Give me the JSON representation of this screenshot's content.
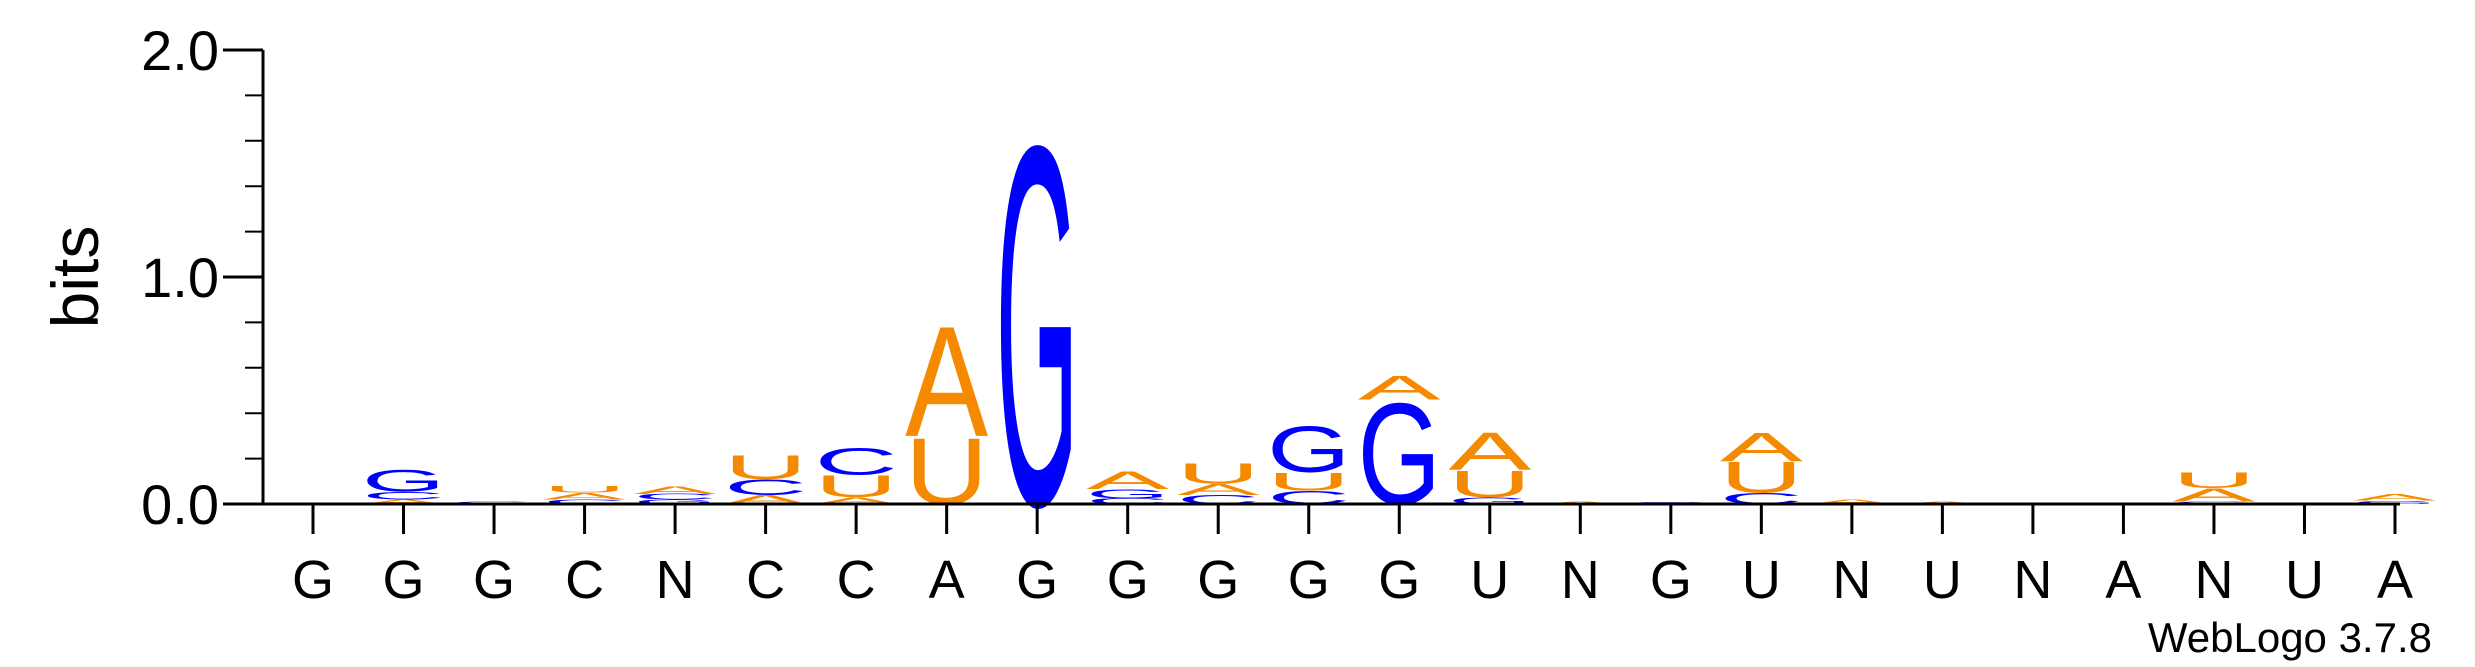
{
  "chart_data": {
    "type": "sequence-logo",
    "ylabel": "bits",
    "ylim": [
      0,
      2.0
    ],
    "yticks": [
      "0.0",
      "1.0",
      "2.0"
    ],
    "xlabels": [
      "G",
      "G",
      "G",
      "C",
      "N",
      "C",
      "C",
      "A",
      "G",
      "G",
      "G",
      "G",
      "G",
      "U",
      "N",
      "G",
      "U",
      "N",
      "U",
      "N",
      "A",
      "N",
      "U",
      "A"
    ],
    "colors": {
      "A": "#f58a00",
      "U": "#f58a00",
      "G": "#0000ff",
      "C": "#0000ff"
    },
    "columns": [
      [],
      [
        [
          "A",
          0.02
        ],
        [
          "C",
          0.035
        ],
        [
          "G",
          0.1
        ]
      ],
      [
        [
          "G",
          0.01
        ]
      ],
      [
        [
          "C",
          0.02
        ],
        [
          "A",
          0.03
        ],
        [
          "U",
          0.03
        ]
      ],
      [
        [
          "G",
          0.02
        ],
        [
          "C",
          0.025
        ],
        [
          "A",
          0.035
        ]
      ],
      [
        [
          "A",
          0.04
        ],
        [
          "C",
          0.07
        ],
        [
          "U",
          0.11
        ]
      ],
      [
        [
          "A",
          0.03
        ],
        [
          "U",
          0.1
        ],
        [
          "C",
          0.12
        ]
      ],
      [
        [
          "U",
          0.3
        ],
        [
          "A",
          0.5
        ]
      ],
      [
        [
          "G",
          1.63
        ]
      ],
      [
        [
          "C",
          0.025
        ],
        [
          "G",
          0.04
        ],
        [
          "A",
          0.08
        ]
      ],
      [
        [
          "C",
          0.04
        ],
        [
          "A",
          0.05
        ],
        [
          "U",
          0.09
        ]
      ],
      [
        [
          "C",
          0.06
        ],
        [
          "U",
          0.08
        ],
        [
          "G",
          0.21
        ]
      ],
      [
        [
          "G",
          0.46
        ],
        [
          "A",
          0.11
        ]
      ],
      [
        [
          "G",
          0.03
        ],
        [
          "U",
          0.12
        ],
        [
          "A",
          0.17
        ]
      ],
      [
        [
          "A",
          0.01
        ]
      ],
      [
        [
          "G",
          0.008
        ]
      ],
      [
        [
          "C",
          0.05
        ],
        [
          "U",
          0.14
        ],
        [
          "A",
          0.13
        ]
      ],
      [
        [
          "A",
          0.02
        ]
      ],
      [
        [
          "A",
          0.01
        ]
      ],
      [],
      [],
      [
        [
          "G",
          0.01
        ],
        [
          "A",
          0.06
        ],
        [
          "U",
          0.07
        ]
      ],
      [],
      [
        [
          "G",
          0.015
        ],
        [
          "A",
          0.03
        ]
      ]
    ],
    "footer": "WebLogo 3.7.8"
  }
}
